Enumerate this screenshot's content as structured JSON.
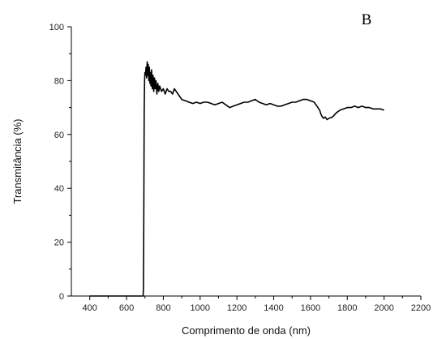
{
  "chart_data": {
    "type": "line",
    "panel_label": "B",
    "title": "",
    "xlabel": "Comprimento de onda (nm)",
    "ylabel": "Transmitância (%)",
    "xlim": [
      300,
      2200
    ],
    "ylim": [
      0,
      100
    ],
    "xticks": [
      400,
      600,
      800,
      1000,
      1200,
      1400,
      1600,
      1800,
      2000,
      2200
    ],
    "yticks": [
      0,
      20,
      40,
      60,
      80,
      100
    ],
    "grid": false,
    "legend": "none",
    "line_color": "#000000",
    "series": [
      {
        "x": [
          400,
          600,
          680,
          690,
          692,
          694,
          696,
          698,
          700,
          703,
          706,
          709,
          712,
          715,
          718,
          721,
          724,
          727,
          730,
          733,
          736,
          740,
          744,
          748,
          752,
          756,
          760,
          765,
          770,
          775,
          780,
          790,
          800,
          810,
          820,
          830,
          840,
          850,
          860,
          870,
          880,
          890,
          900,
          920,
          940,
          960,
          980,
          1000,
          1020,
          1040,
          1060,
          1080,
          1100,
          1120,
          1140,
          1160,
          1180,
          1200,
          1220,
          1240,
          1260,
          1280,
          1300,
          1320,
          1340,
          1360,
          1380,
          1400,
          1420,
          1440,
          1460,
          1480,
          1500,
          1520,
          1540,
          1560,
          1580,
          1600,
          1620,
          1640,
          1650,
          1660,
          1670,
          1680,
          1690,
          1700,
          1720,
          1740,
          1760,
          1780,
          1800,
          1820,
          1840,
          1860,
          1880,
          1900,
          1920,
          1940,
          1960,
          1980,
          2000
        ],
        "y": [
          0,
          0,
          0,
          0,
          3,
          35,
          68,
          80,
          83,
          82,
          85,
          81,
          87,
          82,
          86,
          80,
          85,
          79,
          83,
          78,
          84,
          77,
          82,
          76,
          81,
          77,
          80,
          75,
          79,
          76,
          78,
          76,
          77,
          75,
          77,
          76,
          76,
          75,
          77,
          76,
          75,
          74,
          73,
          72.5,
          72,
          71.5,
          72,
          71.5,
          72,
          72,
          71.5,
          71,
          71.5,
          72,
          71,
          70,
          70.5,
          71,
          71.5,
          72,
          72,
          72.5,
          73,
          72,
          71.5,
          71,
          71.5,
          71,
          70.5,
          70.5,
          71,
          71.5,
          72,
          72,
          72.5,
          73,
          73,
          72.5,
          72,
          70,
          69,
          67,
          66,
          66.5,
          65.5,
          66,
          66.5,
          68,
          69,
          69.5,
          70,
          70,
          70.5,
          70,
          70.5,
          70,
          70,
          69.5,
          69.5,
          69.5,
          69
        ]
      }
    ]
  }
}
